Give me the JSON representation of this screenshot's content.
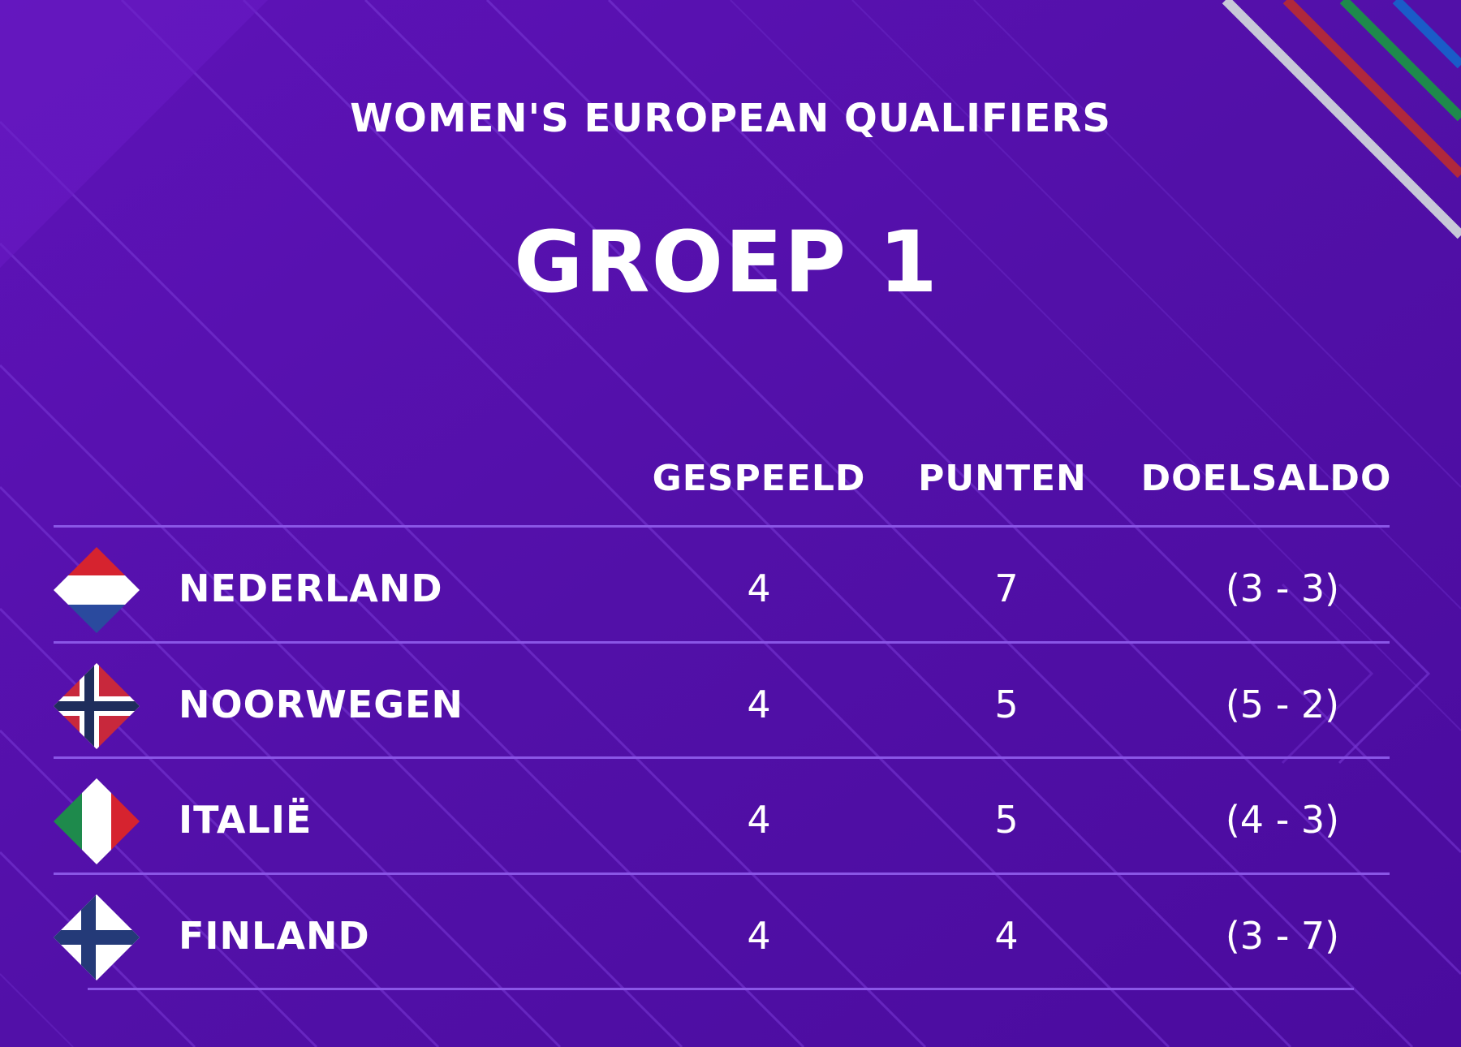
{
  "header": {
    "subtitle": "WOMEN'S EUROPEAN QUALIFIERS",
    "title": "GROEP 1"
  },
  "table": {
    "columns": [
      "GESPEELD",
      "PUNTEN",
      "DOELSALDO"
    ],
    "rows": [
      {
        "team": "NEDERLAND",
        "flag": "netherlands-flag",
        "played": "4",
        "points": "7",
        "goals": "(3 - 3)"
      },
      {
        "team": "NOORWEGEN",
        "flag": "norway-flag",
        "played": "4",
        "points": "5",
        "goals": "(5 - 2)"
      },
      {
        "team": "ITALIË",
        "flag": "italy-flag",
        "played": "4",
        "points": "5",
        "goals": "(4 - 3)"
      },
      {
        "team": "FINLAND",
        "flag": "finland-flag",
        "played": "4",
        "points": "4",
        "goals": "(3 - 7)"
      }
    ]
  },
  "colors": {
    "background": "#5a0fb0",
    "line": "#8a56e6",
    "text": "#ffffff"
  }
}
